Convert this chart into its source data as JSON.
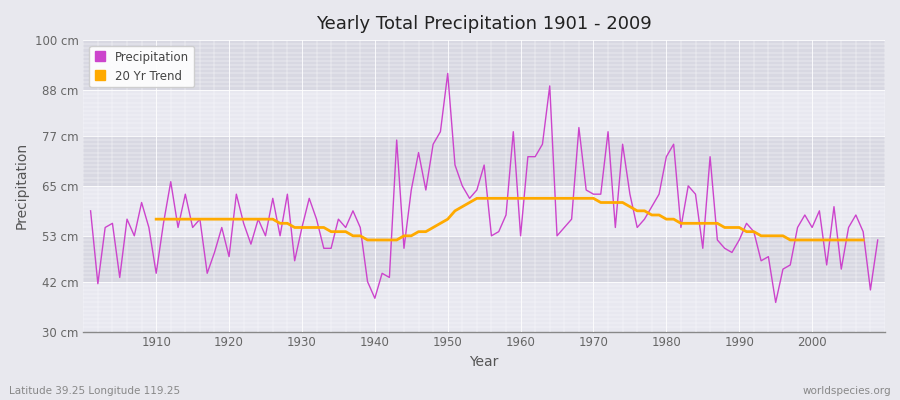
{
  "title": "Yearly Total Precipitation 1901 - 2009",
  "xlabel": "Year",
  "ylabel": "Precipitation",
  "subtitle": "Latitude 39.25 Longitude 119.25",
  "watermark": "worldspecies.org",
  "background_color": "#e8e8ee",
  "plot_bg_color": "#e0e0e8",
  "band_color_1": "#e8e8f0",
  "band_color_2": "#d8d8e2",
  "grid_color": "#ffffff",
  "precip_color": "#cc44cc",
  "trend_color": "#ffaa00",
  "ylim": [
    30,
    100
  ],
  "yticks": [
    30,
    42,
    53,
    65,
    77,
    88,
    100
  ],
  "ytick_labels": [
    "30 cm",
    "42 cm",
    "53 cm",
    "65 cm",
    "77 cm",
    "88 cm",
    "100 cm"
  ],
  "years": [
    1901,
    1902,
    1903,
    1904,
    1905,
    1906,
    1907,
    1908,
    1909,
    1910,
    1911,
    1912,
    1913,
    1914,
    1915,
    1916,
    1917,
    1918,
    1919,
    1920,
    1921,
    1922,
    1923,
    1924,
    1925,
    1926,
    1927,
    1928,
    1929,
    1930,
    1931,
    1932,
    1933,
    1934,
    1935,
    1936,
    1937,
    1938,
    1939,
    1940,
    1941,
    1942,
    1943,
    1944,
    1945,
    1946,
    1947,
    1948,
    1949,
    1950,
    1951,
    1952,
    1953,
    1954,
    1955,
    1956,
    1957,
    1958,
    1959,
    1960,
    1961,
    1962,
    1963,
    1964,
    1965,
    1966,
    1967,
    1968,
    1969,
    1970,
    1971,
    1972,
    1973,
    1974,
    1975,
    1976,
    1977,
    1978,
    1979,
    1980,
    1981,
    1982,
    1983,
    1984,
    1985,
    1986,
    1987,
    1988,
    1989,
    1990,
    1991,
    1992,
    1993,
    1994,
    1995,
    1996,
    1997,
    1998,
    1999,
    2000,
    2001,
    2002,
    2003,
    2004,
    2005,
    2006,
    2007,
    2008,
    2009
  ],
  "precip": [
    59,
    41.5,
    55,
    56,
    43,
    57,
    53,
    61,
    55,
    44,
    56,
    66,
    55,
    63,
    55,
    57,
    44,
    49,
    55,
    48,
    63,
    56,
    51,
    57,
    53,
    62,
    53,
    63,
    47,
    55,
    62,
    57,
    50,
    50,
    57,
    55,
    59,
    55,
    42,
    38,
    44,
    43,
    76,
    50,
    64,
    73,
    64,
    75,
    78,
    92,
    70,
    65,
    62,
    64,
    70,
    53,
    54,
    58,
    78,
    53,
    72,
    72,
    75,
    89,
    53,
    55,
    57,
    79,
    64,
    63,
    63,
    78,
    55,
    75,
    63,
    55,
    57,
    60,
    63,
    72,
    75,
    55,
    65,
    63,
    50,
    72,
    52,
    50,
    49,
    52,
    56,
    54,
    47,
    48,
    37,
    45,
    46,
    55,
    58,
    55,
    59,
    46,
    60,
    45,
    55,
    58,
    54,
    40,
    52
  ],
  "trend": [
    null,
    null,
    null,
    null,
    null,
    null,
    null,
    null,
    null,
    57,
    57,
    57,
    57,
    57,
    57,
    57,
    57,
    57,
    57,
    57,
    57,
    57,
    57,
    57,
    57,
    57,
    56,
    56,
    55,
    55,
    55,
    55,
    55,
    54,
    54,
    54,
    53,
    53,
    52,
    52,
    52,
    52,
    52,
    53,
    53,
    54,
    54,
    55,
    56,
    57,
    59,
    60,
    61,
    62,
    62,
    62,
    62,
    62,
    62,
    62,
    62,
    62,
    62,
    62,
    62,
    62,
    62,
    62,
    62,
    62,
    61,
    61,
    61,
    61,
    60,
    59,
    59,
    58,
    58,
    57,
    57,
    56,
    56,
    56,
    56,
    56,
    56,
    55,
    55,
    55,
    54,
    54,
    53,
    53,
    53,
    53,
    52,
    52,
    52,
    52,
    52,
    52,
    52,
    52,
    52,
    52,
    52,
    null,
    null
  ]
}
